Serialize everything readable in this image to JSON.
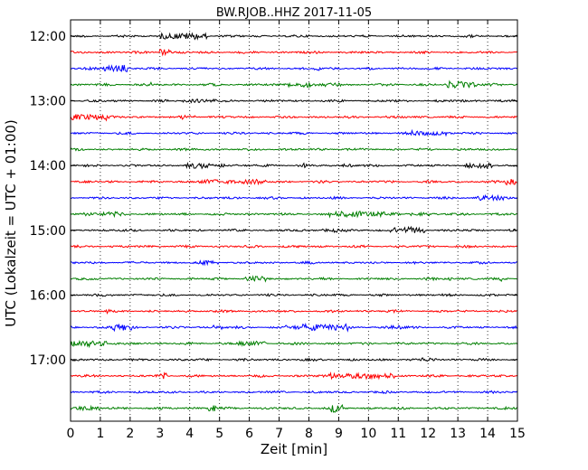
{
  "chart_data": {
    "type": "line",
    "title": "BW.RJOB..HHZ 2017-11-05",
    "xlabel": "Zeit  [min]",
    "ylabel": "UTC (Lokalzeit = UTC + 01:00)",
    "xlim": [
      0,
      15
    ],
    "x_ticks": [
      "0",
      "1",
      "2",
      "3",
      "4",
      "5",
      "6",
      "7",
      "8",
      "9",
      "10",
      "11",
      "12",
      "13",
      "14",
      "15"
    ],
    "y_ticks": [
      "12:00",
      "13:00",
      "14:00",
      "15:00",
      "16:00",
      "17:00"
    ],
    "grid": "vertical dotted",
    "trace_colors": [
      "#000000",
      "#ff0000",
      "#0000ff",
      "#007f00"
    ],
    "trace_start_times": [
      "12:00",
      "12:15",
      "12:30",
      "12:45",
      "13:00",
      "13:15",
      "13:30",
      "13:45",
      "14:00",
      "14:15",
      "14:30",
      "14:45",
      "15:00",
      "15:15",
      "15:30",
      "15:45",
      "16:00",
      "16:15",
      "16:30",
      "16:45",
      "17:00",
      "17:15",
      "17:30",
      "17:45"
    ]
  }
}
